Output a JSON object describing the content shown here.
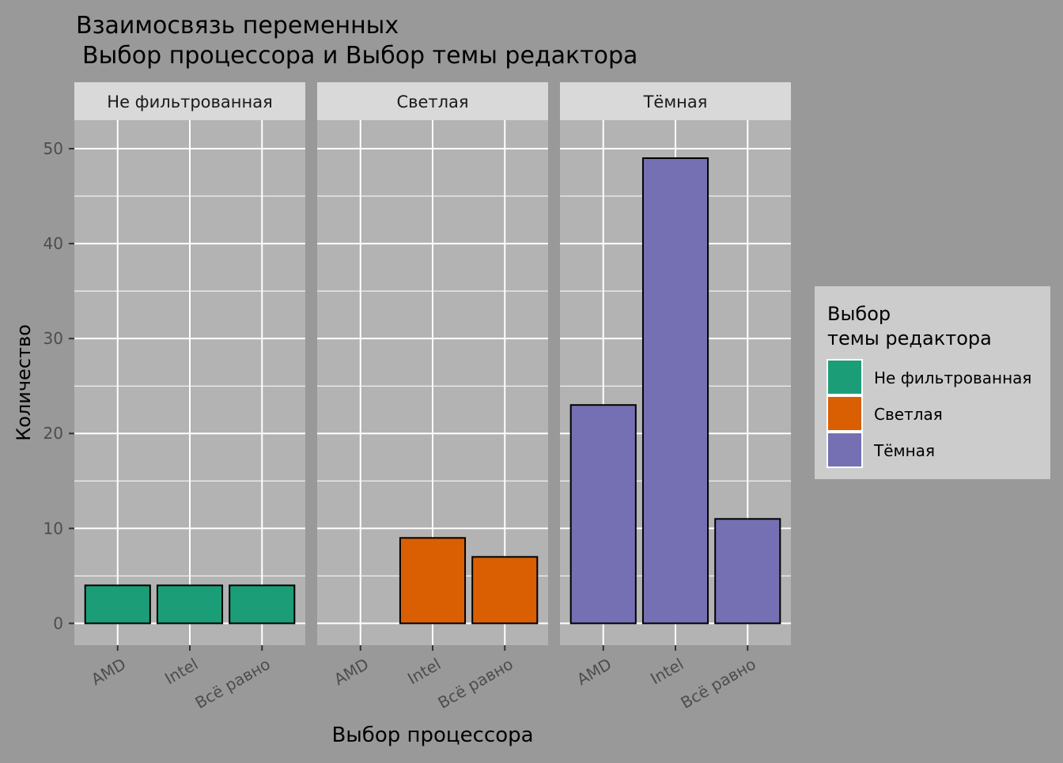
{
  "chart_data": {
    "type": "bar",
    "title_line1": "Взаимосвязь переменных",
    "title_line2": "Выбор процессора и Выбор темы редактора",
    "xlabel": "Выбор процессора",
    "ylabel": "Количество",
    "ylim": [
      -2.3,
      53
    ],
    "y_ticks": [
      0,
      10,
      20,
      30,
      40,
      50
    ],
    "y_tick_labels": [
      "0",
      "10",
      "20",
      "30",
      "40",
      "50"
    ],
    "grid": true,
    "categories": [
      "AMD",
      "Intel",
      "Всё равно"
    ],
    "panels": [
      {
        "name": "Не фильтрованная",
        "color": "#1B9E77",
        "values": [
          4,
          4,
          4
        ]
      },
      {
        "name": "Светлая",
        "color": "#D95F02",
        "values": [
          null,
          9,
          7
        ]
      },
      {
        "name": "Тёмная",
        "color": "#7570B3",
        "values": [
          23,
          49,
          11
        ]
      }
    ],
    "legend": {
      "title_line1": "Выбор",
      "title_line2": "темы редактора",
      "position": "right",
      "items": [
        {
          "label": "Не фильтрованная",
          "color": "#1B9E77"
        },
        {
          "label": "Светлая",
          "color": "#D95F02"
        },
        {
          "label": "Тёмная",
          "color": "#7570B3"
        }
      ]
    }
  }
}
